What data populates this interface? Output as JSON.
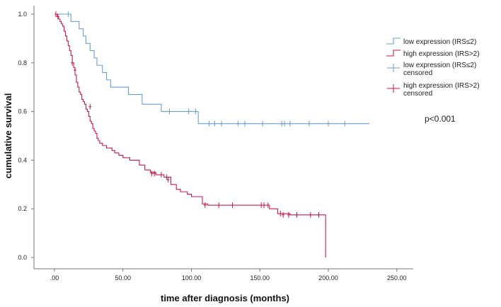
{
  "chart_data": {
    "type": "line",
    "title": "",
    "xlabel": "time after diagnosis (months)",
    "ylabel": "cumulative survival",
    "xlim": [
      0,
      250
    ],
    "ylim": [
      0,
      1.0
    ],
    "x_ticks": [
      0,
      50,
      100,
      150,
      200,
      250
    ],
    "x_tick_labels": [
      ".00",
      "50.00",
      "100.00",
      "150.00",
      "200.00",
      "250.00"
    ],
    "y_ticks": [
      0,
      0.2,
      0.4,
      0.6,
      0.8,
      1.0
    ],
    "y_tick_labels": [
      "0.0",
      "0.2",
      "0.4",
      "0.6",
      "0.8",
      "1.0"
    ],
    "grid": false,
    "legend_position": "right",
    "annotation": "p<0.001",
    "series": [
      {
        "name": "low expression (IRS≤2)",
        "color": "#6a9fd4",
        "step_points": [
          [
            0,
            1.0
          ],
          [
            12,
            0.97
          ],
          [
            18,
            0.94
          ],
          [
            21,
            0.91
          ],
          [
            23,
            0.88
          ],
          [
            26,
            0.85
          ],
          [
            29,
            0.82
          ],
          [
            31,
            0.79
          ],
          [
            35,
            0.76
          ],
          [
            38,
            0.73
          ],
          [
            41,
            0.7
          ],
          [
            54,
            0.67
          ],
          [
            64,
            0.63
          ],
          [
            78,
            0.6
          ],
          [
            105,
            0.55
          ],
          [
            230,
            0.55
          ]
        ],
        "end_x": 230
      },
      {
        "name": "high expression (IRS>2)",
        "color": "#c8194e",
        "step_points": [
          [
            0,
            1.0
          ],
          [
            2,
            0.99
          ],
          [
            3,
            0.98
          ],
          [
            4,
            0.97
          ],
          [
            5,
            0.96
          ],
          [
            6,
            0.95
          ],
          [
            7,
            0.93
          ],
          [
            8,
            0.91
          ],
          [
            9,
            0.89
          ],
          [
            10,
            0.87
          ],
          [
            11,
            0.85
          ],
          [
            12,
            0.83
          ],
          [
            13,
            0.8
          ],
          [
            14,
            0.78
          ],
          [
            15,
            0.75
          ],
          [
            16,
            0.72
          ],
          [
            17,
            0.7
          ],
          [
            18,
            0.68
          ],
          [
            19,
            0.67
          ],
          [
            20,
            0.65
          ],
          [
            21,
            0.64
          ],
          [
            22,
            0.63
          ],
          [
            23,
            0.61
          ],
          [
            24,
            0.6
          ],
          [
            25,
            0.58
          ],
          [
            26,
            0.56
          ],
          [
            27,
            0.55
          ],
          [
            28,
            0.53
          ],
          [
            29,
            0.52
          ],
          [
            30,
            0.51
          ],
          [
            31,
            0.49
          ],
          [
            32,
            0.48
          ],
          [
            33,
            0.47
          ],
          [
            35,
            0.46
          ],
          [
            38,
            0.45
          ],
          [
            42,
            0.44
          ],
          [
            44,
            0.43
          ],
          [
            47,
            0.42
          ],
          [
            50,
            0.41
          ],
          [
            55,
            0.4
          ],
          [
            62,
            0.38
          ],
          [
            66,
            0.36
          ],
          [
            70,
            0.35
          ],
          [
            74,
            0.34
          ],
          [
            80,
            0.33
          ],
          [
            85,
            0.3
          ],
          [
            89,
            0.28
          ],
          [
            92,
            0.27
          ],
          [
            97,
            0.26
          ],
          [
            100,
            0.25
          ],
          [
            108,
            0.22
          ],
          [
            112,
            0.215
          ],
          [
            150,
            0.215
          ],
          [
            157,
            0.2
          ],
          [
            163,
            0.18
          ],
          [
            172,
            0.175
          ],
          [
            198,
            0.175
          ],
          [
            198,
            0.0
          ]
        ],
        "end_x": 198
      }
    ],
    "censored": [
      {
        "name": "low expression (IRS≤2) censored",
        "color": "#6a9fd4",
        "points": [
          [
            10,
            1.0
          ],
          [
            84,
            0.6
          ],
          [
            98,
            0.6
          ],
          [
            103,
            0.6
          ],
          [
            113,
            0.55
          ],
          [
            117,
            0.55
          ],
          [
            122,
            0.55
          ],
          [
            134,
            0.55
          ],
          [
            139,
            0.55
          ],
          [
            152,
            0.55
          ],
          [
            166,
            0.55
          ],
          [
            168,
            0.55
          ],
          [
            172,
            0.55
          ],
          [
            186,
            0.55
          ],
          [
            200,
            0.55
          ],
          [
            212,
            0.55
          ]
        ]
      },
      {
        "name": "high expression (IRS>2) censored",
        "color": "#c8194e",
        "points": [
          [
            1,
            1.0
          ],
          [
            2.5,
            0.99
          ],
          [
            13,
            0.8
          ],
          [
            15,
            0.77
          ],
          [
            26,
            0.62
          ],
          [
            71,
            0.345
          ],
          [
            73,
            0.345
          ],
          [
            78,
            0.34
          ],
          [
            82,
            0.33
          ],
          [
            83,
            0.32
          ],
          [
            110,
            0.215
          ],
          [
            120,
            0.215
          ],
          [
            130,
            0.215
          ],
          [
            151,
            0.215
          ],
          [
            153,
            0.215
          ],
          [
            156,
            0.215
          ],
          [
            165,
            0.18
          ],
          [
            167,
            0.175
          ],
          [
            171,
            0.175
          ],
          [
            177,
            0.175
          ],
          [
            187,
            0.175
          ],
          [
            193,
            0.175
          ]
        ]
      }
    ]
  }
}
